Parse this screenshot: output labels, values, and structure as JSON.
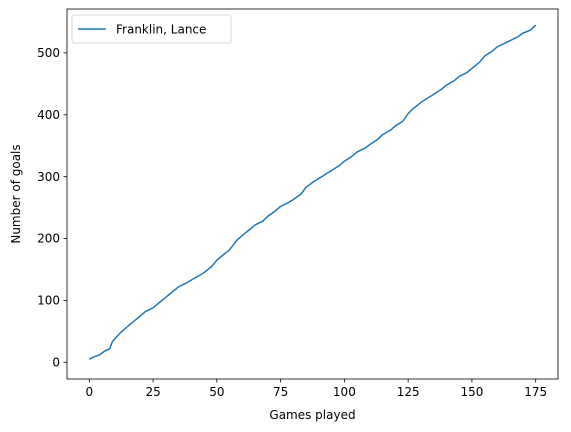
{
  "chart_data": {
    "type": "line",
    "title": "",
    "xlabel": "Games played",
    "ylabel": "Number of goals",
    "xlim": [
      -8.75,
      183.75
    ],
    "ylim": [
      -27,
      571
    ],
    "xticks": [
      0,
      25,
      50,
      75,
      100,
      125,
      150,
      175
    ],
    "yticks": [
      0,
      100,
      200,
      300,
      400,
      500
    ],
    "grid": false,
    "legend_position": "upper left",
    "colors": {
      "series": "#1f77b4",
      "axis": "#000000"
    },
    "series": [
      {
        "name": "Franklin, Lance",
        "x": [
          0,
          2,
          4,
          6,
          8,
          9,
          10,
          12,
          15,
          18,
          20,
          22,
          25,
          27,
          30,
          32,
          35,
          38,
          40,
          43,
          45,
          48,
          50,
          52,
          55,
          58,
          60,
          63,
          65,
          68,
          70,
          73,
          75,
          78,
          80,
          83,
          85,
          88,
          90,
          93,
          95,
          98,
          100,
          103,
          105,
          108,
          110,
          113,
          115,
          118,
          120,
          123,
          125,
          127,
          130,
          133,
          135,
          138,
          140,
          143,
          145,
          148,
          150,
          153,
          155,
          158,
          160,
          163,
          165,
          168,
          170,
          173,
          175
        ],
        "y": [
          5,
          9,
          12,
          18,
          22,
          33,
          38,
          47,
          58,
          68,
          75,
          82,
          88,
          95,
          105,
          112,
          122,
          128,
          133,
          140,
          145,
          155,
          165,
          172,
          182,
          198,
          205,
          215,
          222,
          228,
          236,
          245,
          252,
          258,
          263,
          272,
          283,
          292,
          297,
          305,
          310,
          318,
          325,
          333,
          340,
          346,
          352,
          360,
          368,
          375,
          382,
          390,
          402,
          410,
          420,
          428,
          433,
          441,
          448,
          455,
          462,
          468,
          475,
          485,
          495,
          503,
          510,
          516,
          520,
          526,
          532,
          537,
          545
        ]
      }
    ]
  }
}
